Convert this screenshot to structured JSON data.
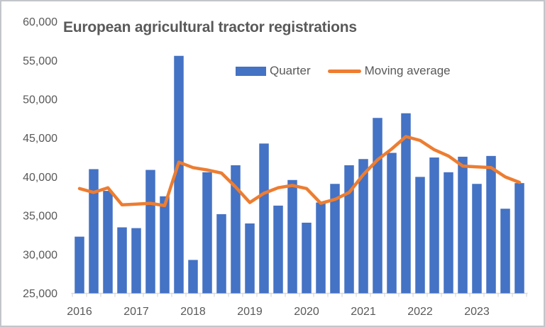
{
  "chart_data": {
    "type": "bar",
    "title": "European agricultural tractor registrations",
    "categories": [
      "2016 Q1",
      "2016 Q2",
      "2016 Q3",
      "2016 Q4",
      "2017 Q1",
      "2017 Q2",
      "2017 Q3",
      "2017 Q4",
      "2018 Q1",
      "2018 Q2",
      "2018 Q3",
      "2018 Q4",
      "2019 Q1",
      "2019 Q2",
      "2019 Q3",
      "2019 Q4",
      "2020 Q1",
      "2020 Q2",
      "2020 Q3",
      "2020 Q4",
      "2021 Q1",
      "2021 Q2",
      "2021 Q3",
      "2021 Q4",
      "2022 Q1",
      "2022 Q2",
      "2022 Q3",
      "2022 Q4",
      "2023 Q1",
      "2023 Q2",
      "2023 Q3",
      "2023 Q4"
    ],
    "x_tick_labels": [
      "2016",
      "2017",
      "2018",
      "2019",
      "2020",
      "2021",
      "2022",
      "2023"
    ],
    "y_tick_labels": [
      "25,000",
      "30,000",
      "35,000",
      "40,000",
      "45,000",
      "50,000",
      "55,000",
      "60,000"
    ],
    "ylim": [
      25000,
      60000
    ],
    "y_tick_interval": 5000,
    "grid": false,
    "legend_position": "top-center",
    "series": [
      {
        "name": "Quarter",
        "type": "bar",
        "color": "#4472C4",
        "values": [
          32300,
          41000,
          38200,
          33500,
          33400,
          40900,
          37500,
          55600,
          29300,
          40600,
          35200,
          41500,
          34000,
          44300,
          36300,
          39600,
          34100,
          36700,
          39100,
          41500,
          42300,
          47600,
          43100,
          48200,
          40000,
          42500,
          40600,
          42600,
          39100,
          42700,
          35900,
          39200
        ]
      },
      {
        "name": "Moving average",
        "type": "line",
        "color": "#ED7D31",
        "values": [
          38500,
          38000,
          38600,
          36400,
          36500,
          36600,
          36300,
          41900,
          41200,
          40900,
          40500,
          38700,
          36700,
          37900,
          38600,
          38900,
          38500,
          36600,
          37100,
          38000,
          40300,
          42200,
          43600,
          45200,
          44700,
          43500,
          42700,
          41400,
          41300,
          41200,
          40000,
          39300
        ]
      }
    ]
  },
  "styles": {
    "bar_color": "#4472C4",
    "line_color": "#ED7D31",
    "text_color": "#595959",
    "axis_color": "#D9D9D9",
    "frame_color": "#C2C6CA",
    "background": "#FFFFFF"
  }
}
